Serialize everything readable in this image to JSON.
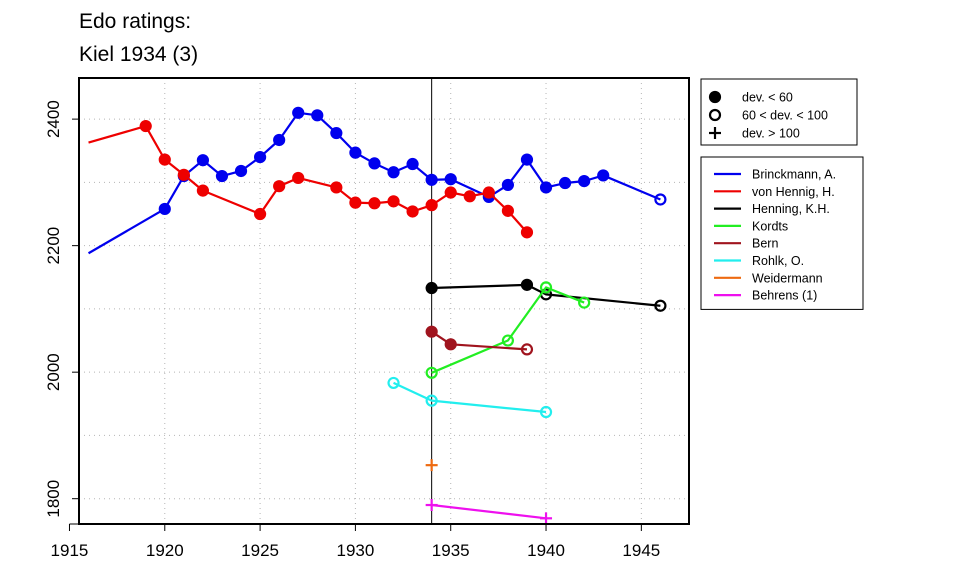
{
  "chart_data": {
    "type": "line",
    "title_lines": [
      "Edo ratings:",
      "Kiel 1934 (3)"
    ],
    "xlabel": "",
    "ylabel": "",
    "xlim": [
      1915.5,
      1947.5
    ],
    "ylim": [
      1760,
      2465
    ],
    "x_ticks": [
      1915,
      1920,
      1925,
      1930,
      1935,
      1940,
      1945
    ],
    "y_ticks": [
      1800,
      2000,
      2200,
      2400
    ],
    "grid": true,
    "vertical_marker_x": 1934,
    "marker_legend": {
      "position": "top-right",
      "entries": [
        {
          "marker": "filled",
          "label": "dev. < 60"
        },
        {
          "marker": "open",
          "label": "60 < dev. < 100"
        },
        {
          "marker": "plus",
          "label": "dev. > 100"
        }
      ]
    },
    "series_legend_position": "right",
    "series": [
      {
        "name": "Brinckmann, A.",
        "color": "#0000ee",
        "points": [
          [
            1916,
            2188,
            "none"
          ],
          [
            1920,
            2258,
            "filled"
          ],
          [
            1921,
            2310,
            "filled"
          ],
          [
            1922,
            2335,
            "filled"
          ],
          [
            1923,
            2310,
            "filled"
          ],
          [
            1924,
            2318,
            "filled"
          ],
          [
            1925,
            2340,
            "filled"
          ],
          [
            1926,
            2367,
            "filled"
          ],
          [
            1927,
            2410,
            "filled"
          ],
          [
            1928,
            2406,
            "filled"
          ],
          [
            1929,
            2378,
            "filled"
          ],
          [
            1930,
            2347,
            "filled"
          ],
          [
            1931,
            2330,
            "filled"
          ],
          [
            1932,
            2316,
            "filled"
          ],
          [
            1933,
            2329,
            "filled"
          ],
          [
            1934,
            2304,
            "filled"
          ],
          [
            1935,
            2305,
            "filled"
          ],
          [
            1937,
            2277,
            "filled"
          ],
          [
            1938,
            2296,
            "filled"
          ],
          [
            1939,
            2336,
            "filled"
          ],
          [
            1940,
            2292,
            "filled"
          ],
          [
            1941,
            2299,
            "filled"
          ],
          [
            1942,
            2302,
            "filled"
          ],
          [
            1943,
            2311,
            "filled"
          ],
          [
            1946,
            2273,
            "open"
          ]
        ]
      },
      {
        "name": "von Hennig, H.",
        "color": "#ee0000",
        "points": [
          [
            1916,
            2363,
            "none"
          ],
          [
            1919,
            2389,
            "filled"
          ],
          [
            1920,
            2336,
            "filled"
          ],
          [
            1921,
            2312,
            "filled"
          ],
          [
            1922,
            2287,
            "filled"
          ],
          [
            1925,
            2250,
            "filled"
          ],
          [
            1926,
            2294,
            "filled"
          ],
          [
            1927,
            2307,
            "filled"
          ],
          [
            1929,
            2292,
            "filled"
          ],
          [
            1930,
            2268,
            "filled"
          ],
          [
            1931,
            2267,
            "filled"
          ],
          [
            1932,
            2270,
            "filled"
          ],
          [
            1933,
            2254,
            "filled"
          ],
          [
            1934,
            2264,
            "filled"
          ],
          [
            1935,
            2284,
            "filled"
          ],
          [
            1936,
            2278,
            "filled"
          ],
          [
            1937,
            2284,
            "filled"
          ],
          [
            1938,
            2255,
            "filled"
          ],
          [
            1939,
            2221,
            "filled"
          ]
        ]
      },
      {
        "name": "Henning, K.H.",
        "color": "#000000",
        "points": [
          [
            1934,
            2133,
            "filled"
          ],
          [
            1939,
            2138,
            "filled"
          ],
          [
            1940,
            2123,
            "open"
          ],
          [
            1946,
            2105,
            "open"
          ]
        ]
      },
      {
        "name": "Kordts",
        "color": "#22ee22",
        "points": [
          [
            1934,
            1999,
            "open"
          ],
          [
            1938,
            2050,
            "open"
          ],
          [
            1940,
            2134,
            "open"
          ],
          [
            1942,
            2110,
            "open"
          ]
        ]
      },
      {
        "name": "Bern",
        "color": "#a0141e",
        "points": [
          [
            1934,
            2064,
            "filled"
          ],
          [
            1935,
            2044,
            "filled"
          ],
          [
            1939,
            2036,
            "open"
          ]
        ]
      },
      {
        "name": "Rohlk, O.",
        "color": "#22eeee",
        "points": [
          [
            1932,
            1983,
            "open"
          ],
          [
            1934,
            1955,
            "open"
          ],
          [
            1940,
            1937,
            "open"
          ]
        ]
      },
      {
        "name": "Weidermann",
        "color": "#ee6a10",
        "points": [
          [
            1934,
            1853,
            "plus"
          ]
        ]
      },
      {
        "name": "Behrens (1)",
        "color": "#ee10ee",
        "points": [
          [
            1934,
            1790,
            "plus"
          ],
          [
            1940,
            1769,
            "plus"
          ]
        ]
      }
    ]
  }
}
